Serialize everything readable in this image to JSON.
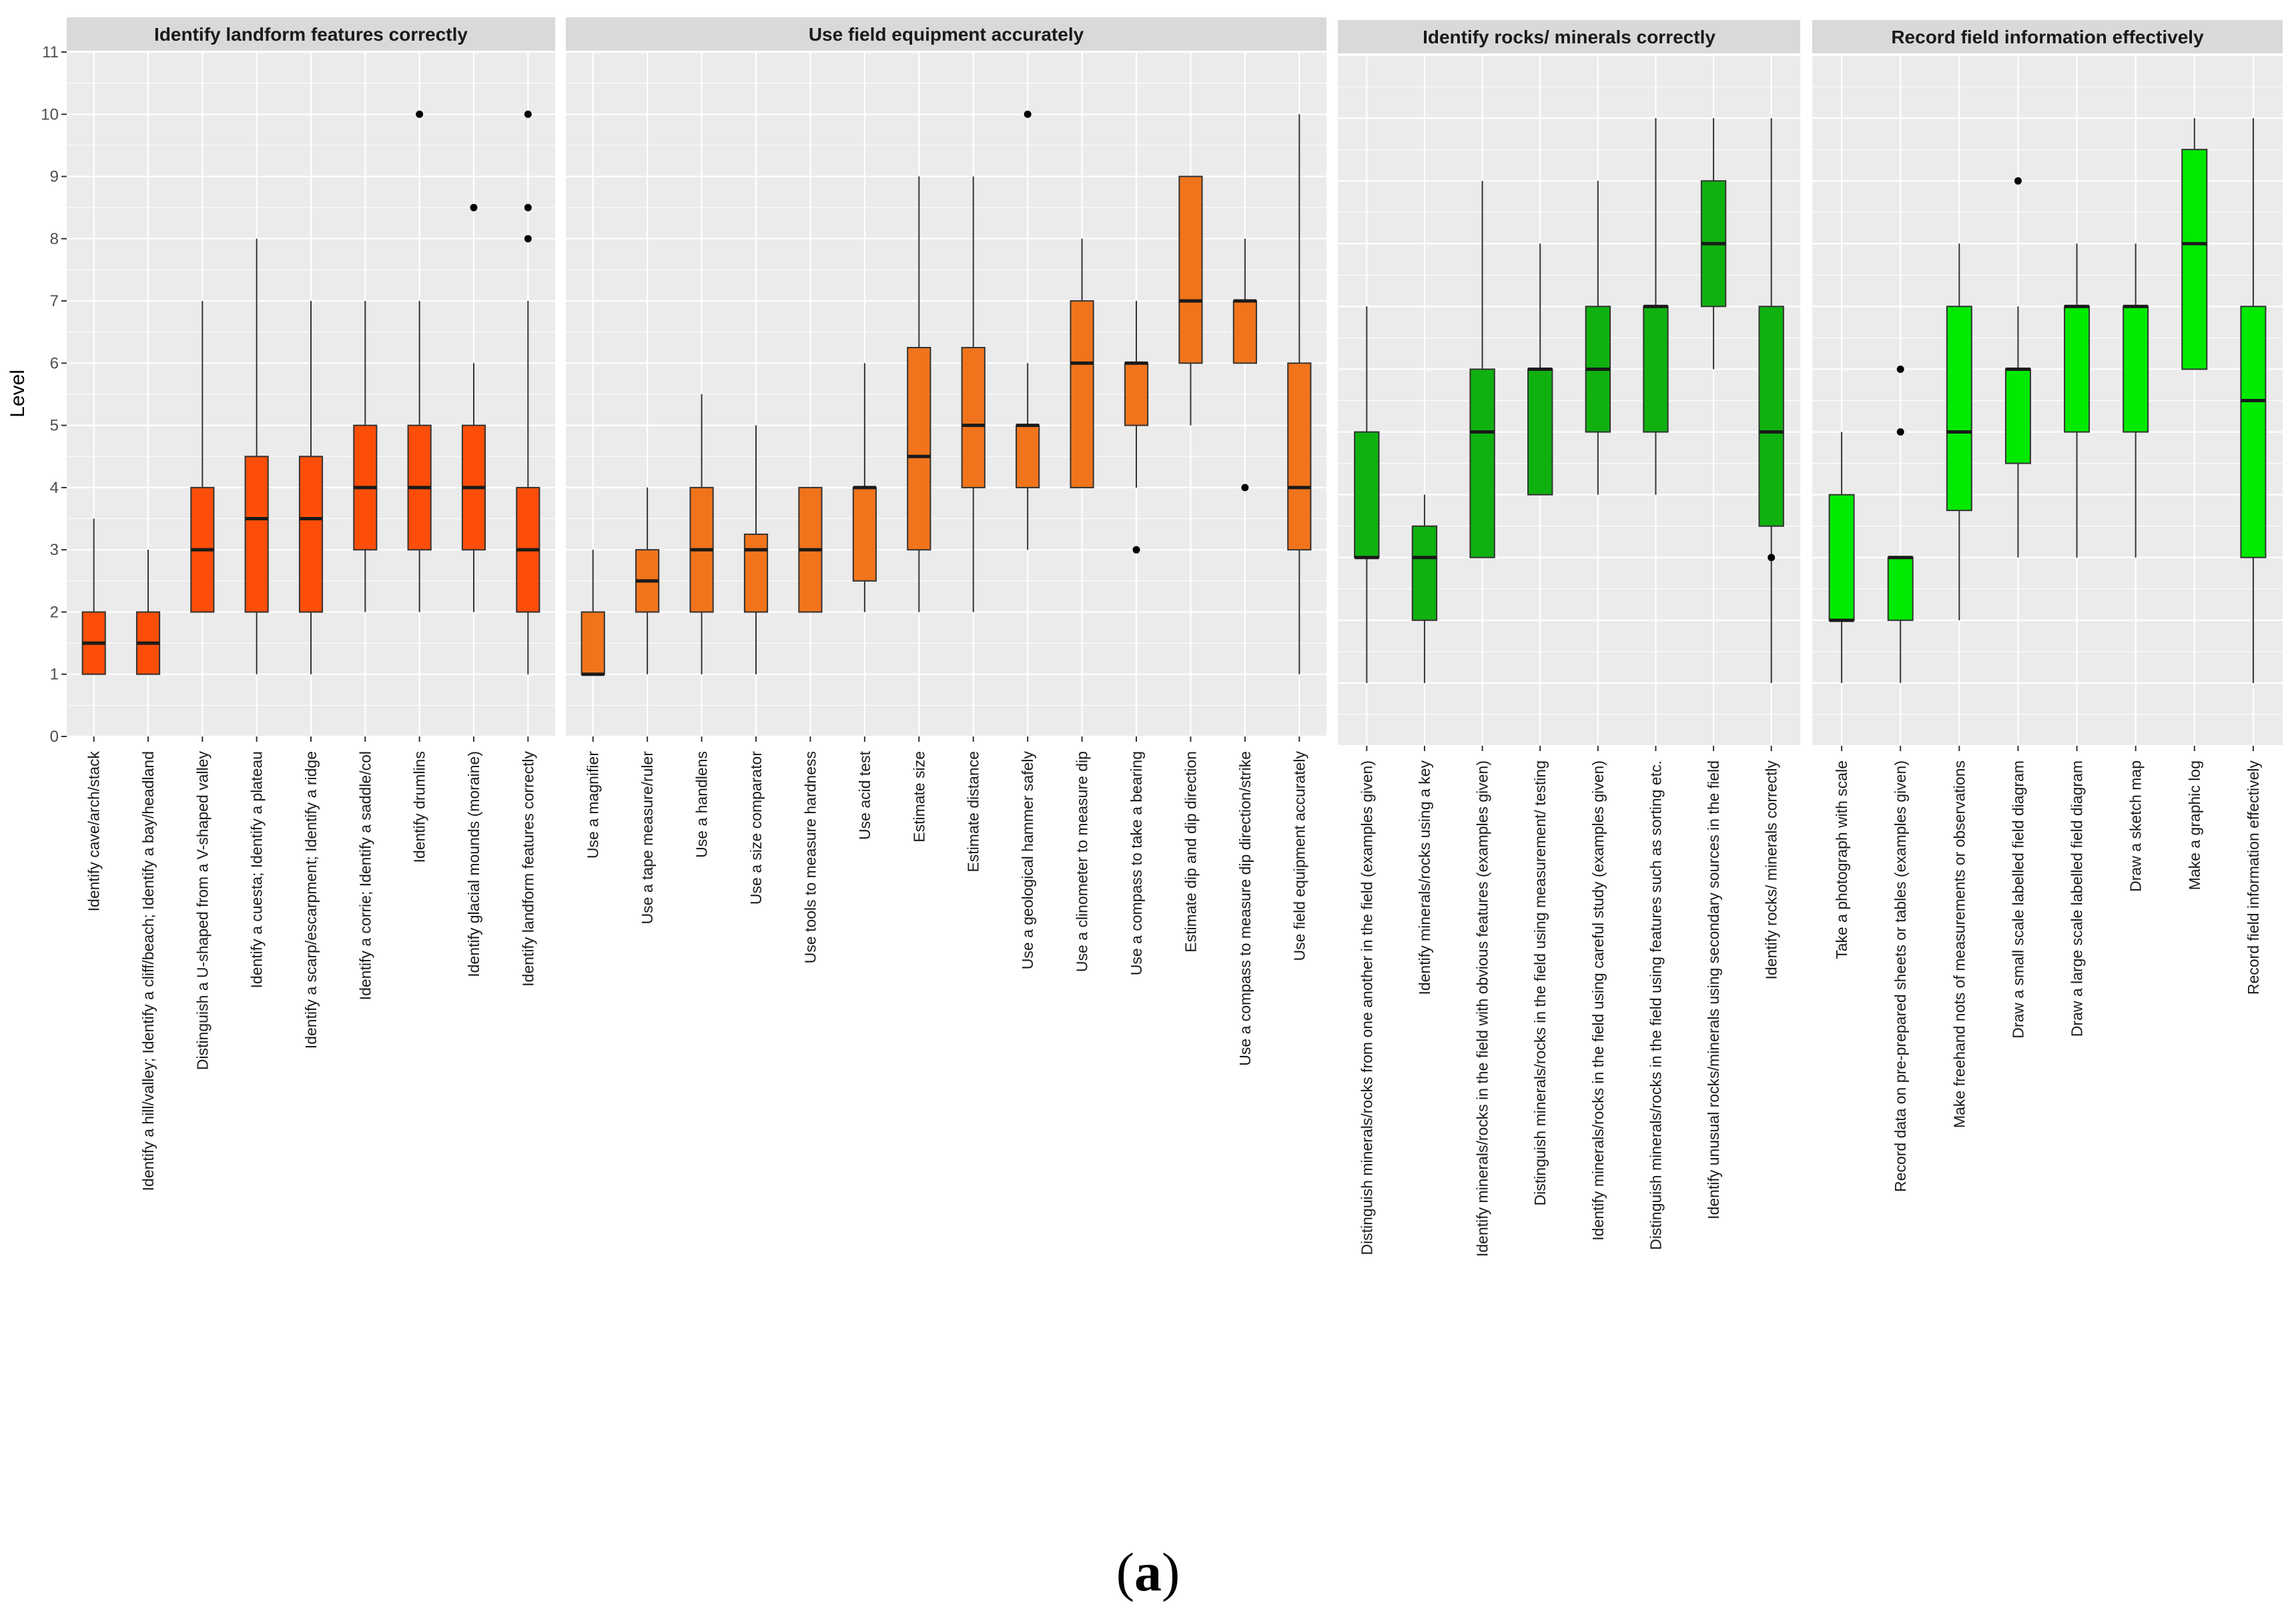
{
  "caption": {
    "open": "(",
    "letter": "a",
    "close": ")"
  },
  "chart_data": {
    "type": "boxplot",
    "ylabel": "Level",
    "ylim": [
      0,
      11
    ],
    "yticks": [
      "0",
      "1",
      "2",
      "3",
      "4",
      "5",
      "6",
      "7",
      "8",
      "9",
      "10",
      "11"
    ],
    "grid": true,
    "legend": "none",
    "panels": [
      {
        "title": "Identify landform features correctly",
        "color": "#fc4e08",
        "show_y_axis": true,
        "boxes": [
          {
            "label": "Identify cave/arch/stack",
            "min": 1,
            "q1": 1,
            "median": 1.5,
            "q3": 2,
            "max": 3.5,
            "outliers": []
          },
          {
            "label": "Identify a hill/valley; Identify a cliff/beach; Identify a bay/headland",
            "min": 1,
            "q1": 1,
            "median": 1.5,
            "q3": 2,
            "max": 3,
            "outliers": []
          },
          {
            "label": "Distinguish a U-shaped from a V-shaped valley",
            "min": 2,
            "q1": 2,
            "median": 3,
            "q3": 4,
            "max": 7,
            "outliers": []
          },
          {
            "label": "Identify a cuesta; Identify a plateau",
            "min": 1,
            "q1": 2,
            "median": 3.5,
            "q3": 4.5,
            "max": 8,
            "outliers": []
          },
          {
            "label": "Identify a scarp/escarpment; Identify a ridge",
            "min": 1,
            "q1": 2,
            "median": 3.5,
            "q3": 4.5,
            "max": 7,
            "outliers": []
          },
          {
            "label": "Identify a corrie; Identify a saddle/col",
            "min": 2,
            "q1": 3,
            "median": 4,
            "q3": 5,
            "max": 7,
            "outliers": []
          },
          {
            "label": "Identify drumlins",
            "min": 2,
            "q1": 3,
            "median": 4,
            "q3": 5,
            "max": 7,
            "outliers": [
              10
            ]
          },
          {
            "label": "Identify glacial mounds (moraine)",
            "min": 2,
            "q1": 3,
            "median": 4,
            "q3": 5,
            "max": 6,
            "outliers": [
              8.5
            ]
          },
          {
            "label": "Identify landform features correctly",
            "min": 1,
            "q1": 2,
            "median": 3,
            "q3": 4,
            "max": 7,
            "outliers": [
              8,
              8.5,
              10
            ]
          }
        ]
      },
      {
        "title": "Use field equipment accurately",
        "color": "#f1741c",
        "show_y_axis": false,
        "boxes": [
          {
            "label": "Use a magnifier",
            "min": 1,
            "q1": 1,
            "median": 1,
            "q3": 2,
            "max": 3,
            "outliers": []
          },
          {
            "label": "Use a tape measure/ruler",
            "min": 1,
            "q1": 2,
            "median": 2.5,
            "q3": 3,
            "max": 4,
            "outliers": []
          },
          {
            "label": "Use a handlens",
            "min": 1,
            "q1": 2,
            "median": 3,
            "q3": 4,
            "max": 5.5,
            "outliers": []
          },
          {
            "label": "Use a size comparator",
            "min": 1,
            "q1": 2,
            "median": 3,
            "q3": 3.25,
            "max": 5,
            "outliers": []
          },
          {
            "label": "Use tools to measure hardness",
            "min": 2,
            "q1": 2,
            "median": 3,
            "q3": 4,
            "max": 4,
            "outliers": []
          },
          {
            "label": "Use acid test",
            "min": 2,
            "q1": 2.5,
            "median": 4,
            "q3": 4,
            "max": 6,
            "outliers": []
          },
          {
            "label": "Estimate size",
            "min": 2,
            "q1": 3,
            "median": 4.5,
            "q3": 6.25,
            "max": 9,
            "outliers": []
          },
          {
            "label": "Estimate distance",
            "min": 2,
            "q1": 4,
            "median": 5,
            "q3": 6.25,
            "max": 9,
            "outliers": []
          },
          {
            "label": "Use a geological hammer safely",
            "min": 3,
            "q1": 4,
            "median": 5,
            "q3": 5,
            "max": 6,
            "outliers": [
              10
            ]
          },
          {
            "label": "Use a clinometer to measure dip",
            "min": 4,
            "q1": 4,
            "median": 6,
            "q3": 7,
            "max": 8,
            "outliers": []
          },
          {
            "label": "Use a compass to take a bearing",
            "min": 4,
            "q1": 5,
            "median": 6,
            "q3": 6,
            "max": 7,
            "outliers": [
              3
            ]
          },
          {
            "label": "Estimate dip and dip direction",
            "min": 5,
            "q1": 6,
            "median": 7,
            "q3": 9,
            "max": 9,
            "outliers": []
          },
          {
            "label": "Use a compass to measure dip direction/strike",
            "min": 6,
            "q1": 6,
            "median": 7,
            "q3": 7,
            "max": 8,
            "outliers": [
              4
            ]
          },
          {
            "label": "Use field equipment accurately",
            "min": 1,
            "q1": 3,
            "median": 4,
            "q3": 6,
            "max": 10,
            "outliers": []
          }
        ]
      },
      {
        "title": "Identify rocks/ minerals correctly",
        "color": "#0fb10f",
        "show_y_axis": false,
        "boxes": [
          {
            "label": "Distinguish minerals/rocks from one another in the field (examples given)",
            "min": 1,
            "q1": 3,
            "median": 3,
            "q3": 5,
            "max": 7,
            "outliers": []
          },
          {
            "label": "Identify minerals/rocks using a key",
            "min": 1,
            "q1": 2,
            "median": 3,
            "q3": 3.5,
            "max": 4,
            "outliers": []
          },
          {
            "label": "Identify minerals/rocks in the field with obvious features (examples given)",
            "min": 3,
            "q1": 3,
            "median": 5,
            "q3": 6,
            "max": 9,
            "outliers": []
          },
          {
            "label": "Distinguish minerals/rocks in the field using measurement/ testing",
            "min": 4,
            "q1": 4,
            "median": 6,
            "q3": 6,
            "max": 8,
            "outliers": []
          },
          {
            "label": "Identify minerals/rocks in the field using careful study (examples given)",
            "min": 4,
            "q1": 5,
            "median": 6,
            "q3": 7,
            "max": 9,
            "outliers": []
          },
          {
            "label": "Distinguish minerals/rocks in the field using features such as sorting etc.",
            "min": 4,
            "q1": 5,
            "median": 7,
            "q3": 7,
            "max": 10,
            "outliers": []
          },
          {
            "label": "Identify unusual rocks/minerals using secondary sources in the field",
            "min": 6,
            "q1": 7,
            "median": 8,
            "q3": 9,
            "max": 10,
            "outliers": []
          },
          {
            "label": "Identify rocks/ minerals correctly",
            "min": 1,
            "q1": 3.5,
            "median": 5,
            "q3": 7,
            "max": 10,
            "outliers": [
              3
            ]
          }
        ]
      },
      {
        "title": "Record field information effectively",
        "color": "#00ea00",
        "show_y_axis": false,
        "boxes": [
          {
            "label": "Take a photograph with scale",
            "min": 1,
            "q1": 2,
            "median": 2,
            "q3": 4,
            "max": 5,
            "outliers": []
          },
          {
            "label": "Record data on pre-prepared sheets or tables (examples given)",
            "min": 1,
            "q1": 2,
            "median": 3,
            "q3": 3,
            "max": 3,
            "outliers": [
              5,
              6
            ]
          },
          {
            "label": "Make freehand nots of measurements or observations",
            "min": 2,
            "q1": 3.75,
            "median": 5,
            "q3": 7,
            "max": 8,
            "outliers": []
          },
          {
            "label": "Draw a small scale labelled field diagram",
            "min": 3,
            "q1": 4.5,
            "median": 6,
            "q3": 6,
            "max": 7,
            "outliers": [
              9
            ]
          },
          {
            "label": "Draw a large scale labelled field diagram",
            "min": 3,
            "q1": 5,
            "median": 7,
            "q3": 7,
            "max": 8,
            "outliers": []
          },
          {
            "label": "Draw a sketch map",
            "min": 3,
            "q1": 5,
            "median": 7,
            "q3": 7,
            "max": 8,
            "outliers": []
          },
          {
            "label": "Make a graphic log",
            "min": 6,
            "q1": 6,
            "median": 8,
            "q3": 9.5,
            "max": 10,
            "outliers": []
          },
          {
            "label": "Record field information effectively",
            "min": 1,
            "q1": 3,
            "median": 5.5,
            "q3": 7,
            "max": 10,
            "outliers": []
          }
        ]
      }
    ]
  }
}
